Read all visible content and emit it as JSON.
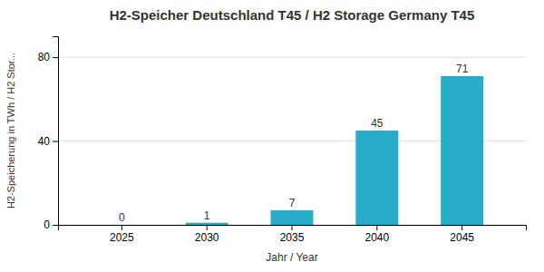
{
  "chart_data": {
    "type": "bar",
    "title": "H2-Speicher Deutschland T45 / H2 Storage Germany T45",
    "xlabel": "Jahr / Year",
    "ylabel": "H2-Speicherung in TWh / H2 Stor...",
    "categories": [
      "2025",
      "2030",
      "2035",
      "2040",
      "2045"
    ],
    "values": [
      0,
      1,
      7,
      45,
      71
    ],
    "color": "#29ABCA",
    "ylim": [
      0,
      90
    ],
    "yticks": [
      0,
      40,
      80
    ],
    "grid": true,
    "data_labels": true
  }
}
